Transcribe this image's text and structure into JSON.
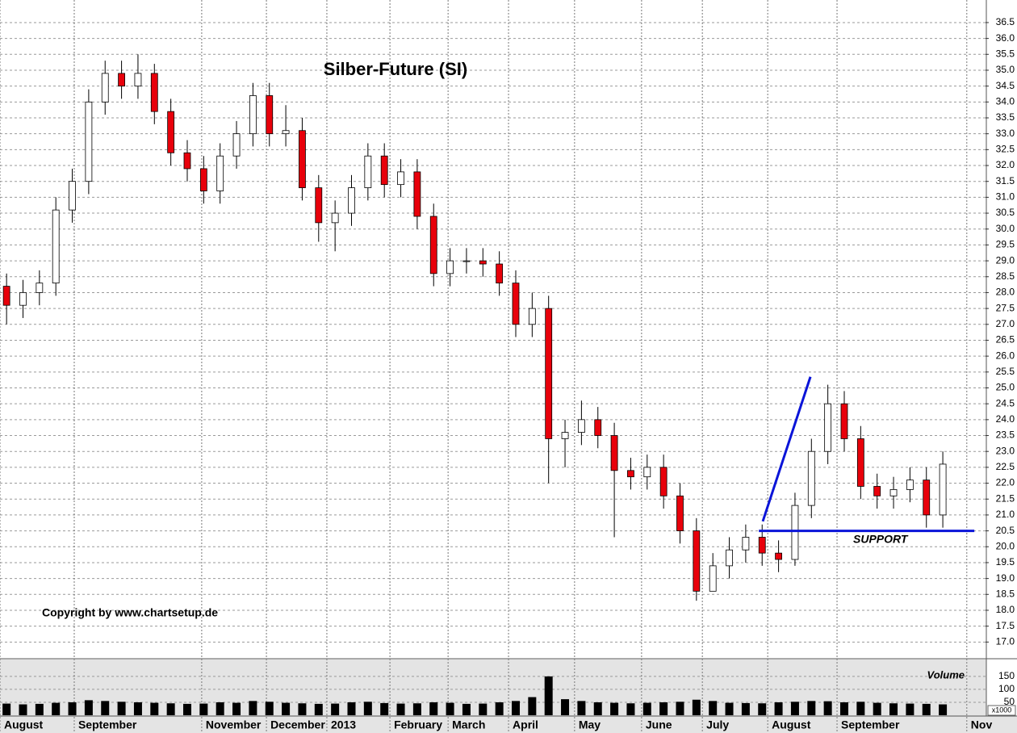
{
  "chart_data": {
    "type": "candlestick",
    "title": "Silber-Future (SI)",
    "copyright": "Copyright by www.chartsetup.de",
    "volume_label": "Volume",
    "volume_unit": "x1000",
    "annotation": "SUPPORT",
    "up_color": "#ffffff",
    "down_color": "#e8000b",
    "line_color": "#0a14d8",
    "grid": true,
    "xlim": [
      0,
      300
    ],
    "ylim": [
      16.5,
      37.21
    ],
    "vol_ylim": [
      0,
      212
    ],
    "x": [
      2,
      7,
      12,
      17,
      22,
      27,
      32,
      37,
      42,
      47,
      52,
      57,
      62,
      67,
      72,
      77,
      82,
      87,
      92,
      97,
      102,
      107,
      112,
      117,
      122,
      127,
      132,
      137,
      142,
      147,
      152,
      157,
      162,
      167,
      172,
      177,
      182,
      187,
      192,
      197,
      202,
      207,
      212,
      217,
      222,
      227,
      232,
      237,
      242,
      247,
      252,
      257,
      262,
      267,
      272,
      277,
      282,
      287
    ],
    "open": [
      28.2,
      27.6,
      28.0,
      28.3,
      30.6,
      31.5,
      34.0,
      34.9,
      34.5,
      34.9,
      33.7,
      32.4,
      31.9,
      31.2,
      32.3,
      33.0,
      34.2,
      33.0,
      33.1,
      31.3,
      30.2,
      30.5,
      31.3,
      32.3,
      31.4,
      31.8,
      30.4,
      28.6,
      29.0,
      29.0,
      28.9,
      28.3,
      27.0,
      27.5,
      23.4,
      23.6,
      24.0,
      23.5,
      22.4,
      22.2,
      22.5,
      21.6,
      20.5,
      18.6,
      19.4,
      19.9,
      20.3,
      19.8,
      19.6,
      21.3,
      23.0,
      24.5,
      23.4,
      21.9,
      21.6,
      21.8,
      22.1,
      21.0
    ],
    "high": [
      28.6,
      28.4,
      28.7,
      31.0,
      31.9,
      34.4,
      35.3,
      35.3,
      35.5,
      35.2,
      34.1,
      32.8,
      32.3,
      32.7,
      33.4,
      34.6,
      34.6,
      33.9,
      33.5,
      31.7,
      30.9,
      31.7,
      32.7,
      32.7,
      32.2,
      32.2,
      30.8,
      29.4,
      29.4,
      29.4,
      29.3,
      28.7,
      28.0,
      27.9,
      24.0,
      24.6,
      24.4,
      23.9,
      22.8,
      22.9,
      22.9,
      22.0,
      20.9,
      19.8,
      20.3,
      20.7,
      20.7,
      20.2,
      21.7,
      23.4,
      25.1,
      24.9,
      23.8,
      22.3,
      22.2,
      22.5,
      22.5,
      23.0
    ],
    "low": [
      27.0,
      27.2,
      27.6,
      27.9,
      30.2,
      31.1,
      33.6,
      34.1,
      34.1,
      33.3,
      32.0,
      31.5,
      30.8,
      30.8,
      31.9,
      32.6,
      32.6,
      32.6,
      30.9,
      29.6,
      29.3,
      30.1,
      30.9,
      31.0,
      31.0,
      30.0,
      28.2,
      28.2,
      28.6,
      28.5,
      27.9,
      26.6,
      26.6,
      22.0,
      22.5,
      23.2,
      23.1,
      20.3,
      21.8,
      21.8,
      21.2,
      20.1,
      18.3,
      18.6,
      19.0,
      19.5,
      19.4,
      19.2,
      19.4,
      20.9,
      22.6,
      23.0,
      21.5,
      21.2,
      21.2,
      21.4,
      20.6,
      20.6
    ],
    "close": [
      27.6,
      28.0,
      28.3,
      30.6,
      31.5,
      34.0,
      34.9,
      34.5,
      34.9,
      33.7,
      32.4,
      31.9,
      31.2,
      32.3,
      33.0,
      34.2,
      33.0,
      33.1,
      31.3,
      30.2,
      30.5,
      31.3,
      32.3,
      31.4,
      31.8,
      30.4,
      28.6,
      29.0,
      29.0,
      28.9,
      28.3,
      27.0,
      27.5,
      23.4,
      23.6,
      24.0,
      23.5,
      22.4,
      22.2,
      22.5,
      21.6,
      20.5,
      18.6,
      19.4,
      19.9,
      20.3,
      19.8,
      19.6,
      21.3,
      23.0,
      24.5,
      23.4,
      21.9,
      21.6,
      21.8,
      22.1,
      21.0,
      22.6
    ],
    "volume": [
      45,
      42,
      44,
      48,
      50,
      58,
      55,
      52,
      50,
      48,
      46,
      44,
      45,
      50,
      48,
      55,
      52,
      48,
      46,
      44,
      45,
      50,
      52,
      47,
      45,
      46,
      50,
      48,
      44,
      45,
      50,
      55,
      70,
      150,
      62,
      55,
      50,
      48,
      46,
      48,
      50,
      52,
      60,
      55,
      48,
      47,
      46,
      50,
      52,
      55,
      54,
      50,
      52,
      48,
      46,
      45,
      44,
      42
    ],
    "support_line": {
      "x": [
        231,
        296.6
      ],
      "y": [
        20.5,
        20.5
      ]
    },
    "trend_line": {
      "x": [
        232.2,
        246.7
      ],
      "y": [
        20.8,
        25.35
      ]
    },
    "xticks": [
      {
        "value": 0,
        "label": "August"
      },
      {
        "value": 22.6,
        "label": "September"
      },
      {
        "value": 61.4,
        "label": "November"
      },
      {
        "value": 81.1,
        "label": "December"
      },
      {
        "value": 99.5,
        "label": "2013"
      },
      {
        "value": 118.7,
        "label": "February"
      },
      {
        "value": 136.4,
        "label": "March"
      },
      {
        "value": 154.8,
        "label": "April"
      },
      {
        "value": 174.9,
        "label": "May"
      },
      {
        "value": 195.3,
        "label": "June"
      },
      {
        "value": 213.8,
        "label": "July"
      },
      {
        "value": 233.7,
        "label": "August"
      },
      {
        "value": 254.8,
        "label": "September"
      },
      {
        "value": 294.3,
        "label": "Nov"
      }
    ],
    "yticks": [
      {
        "value": 17,
        "label": "17.0"
      },
      17.5,
      {
        "value": 18,
        "label": "18.0"
      },
      18.5,
      {
        "value": 19,
        "label": "19.0"
      },
      19.5,
      {
        "value": 20,
        "label": "20.0"
      },
      20.5,
      {
        "value": 21,
        "label": "21.0"
      },
      21.5,
      {
        "value": 22,
        "label": "22.0"
      },
      22.5,
      {
        "value": 23,
        "label": "23.0"
      },
      23.5,
      {
        "value": 24,
        "label": "24.0"
      },
      24.5,
      {
        "value": 25,
        "label": "25.0"
      },
      25.5,
      {
        "value": 26,
        "label": "26.0"
      },
      26.5,
      {
        "value": 27,
        "label": "27.0"
      },
      27.5,
      {
        "value": 28,
        "label": "28.0"
      },
      28.5,
      {
        "value": 29,
        "label": "29.0"
      },
      29.5,
      {
        "value": 30,
        "label": "30.0"
      },
      30.5,
      {
        "value": 31,
        "label": "31.0"
      },
      31.5,
      {
        "value": 32,
        "label": "32.0"
      },
      32.5,
      {
        "value": 33,
        "label": "33.0"
      },
      33.5,
      {
        "value": 34,
        "label": "34.0"
      },
      34.5,
      {
        "value": 35,
        "label": "35.0"
      },
      35.5,
      {
        "value": 36,
        "label": "36.0"
      },
      36.5
    ],
    "vol_yticks": [
      50,
      100,
      150
    ]
  }
}
